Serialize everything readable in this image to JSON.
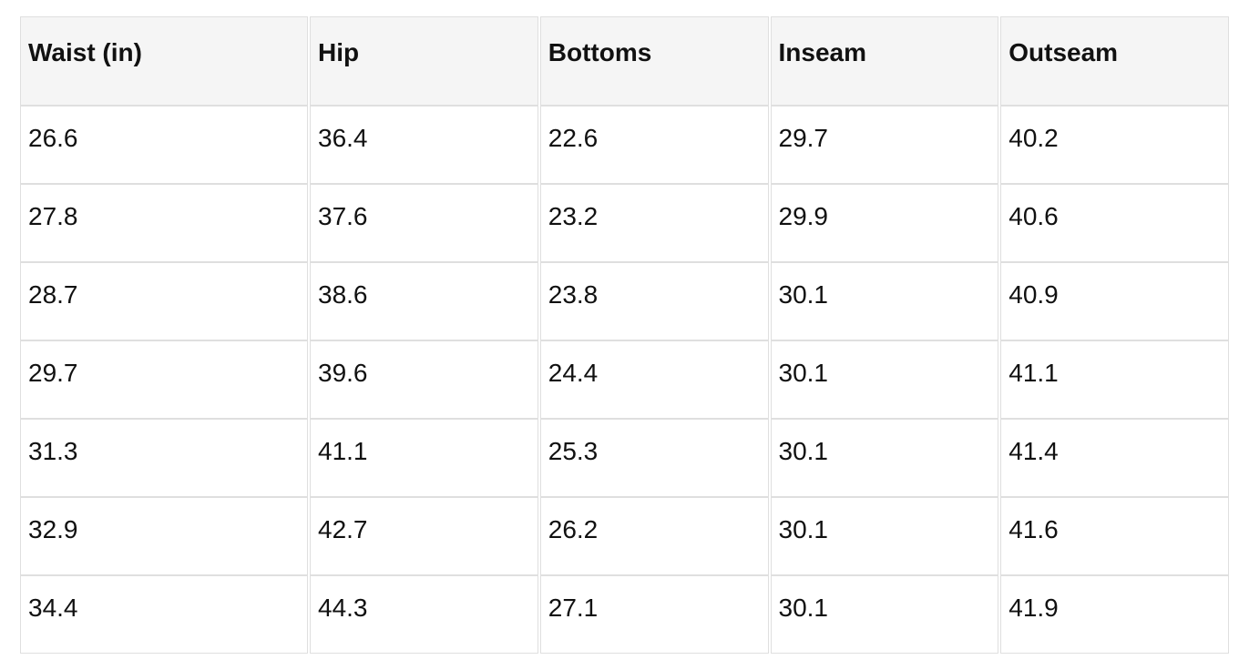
{
  "table": {
    "headers": [
      "Waist (in)",
      "Hip",
      "Bottoms",
      "Inseam",
      "Outseam"
    ],
    "rows": [
      [
        "26.6",
        "36.4",
        "22.6",
        "29.7",
        "40.2"
      ],
      [
        "27.8",
        "37.6",
        "23.2",
        "29.9",
        "40.6"
      ],
      [
        "28.7",
        "38.6",
        "23.8",
        "30.1",
        "40.9"
      ],
      [
        "29.7",
        "39.6",
        "24.4",
        "30.1",
        "41.1"
      ],
      [
        "31.3",
        "41.1",
        "25.3",
        "30.1",
        "41.4"
      ],
      [
        "32.9",
        "42.7",
        "26.2",
        "30.1",
        "41.6"
      ],
      [
        "34.4",
        "44.3",
        "27.1",
        "30.1",
        "41.9"
      ]
    ]
  },
  "colors": {
    "header_bg": "#f5f5f5",
    "cell_bg": "#ffffff",
    "border": "#dfdfdf",
    "text": "#111111"
  },
  "chart_data": {
    "type": "table",
    "columns": [
      "Waist (in)",
      "Hip",
      "Bottoms",
      "Inseam",
      "Outseam"
    ],
    "rows": [
      [
        26.6,
        36.4,
        22.6,
        29.7,
        40.2
      ],
      [
        27.8,
        37.6,
        23.2,
        29.9,
        40.6
      ],
      [
        28.7,
        38.6,
        23.8,
        30.1,
        40.9
      ],
      [
        29.7,
        39.6,
        24.4,
        30.1,
        41.1
      ],
      [
        31.3,
        41.1,
        25.3,
        30.1,
        41.4
      ],
      [
        32.9,
        42.7,
        26.2,
        30.1,
        41.6
      ],
      [
        34.4,
        44.3,
        27.1,
        30.1,
        41.9
      ]
    ]
  }
}
